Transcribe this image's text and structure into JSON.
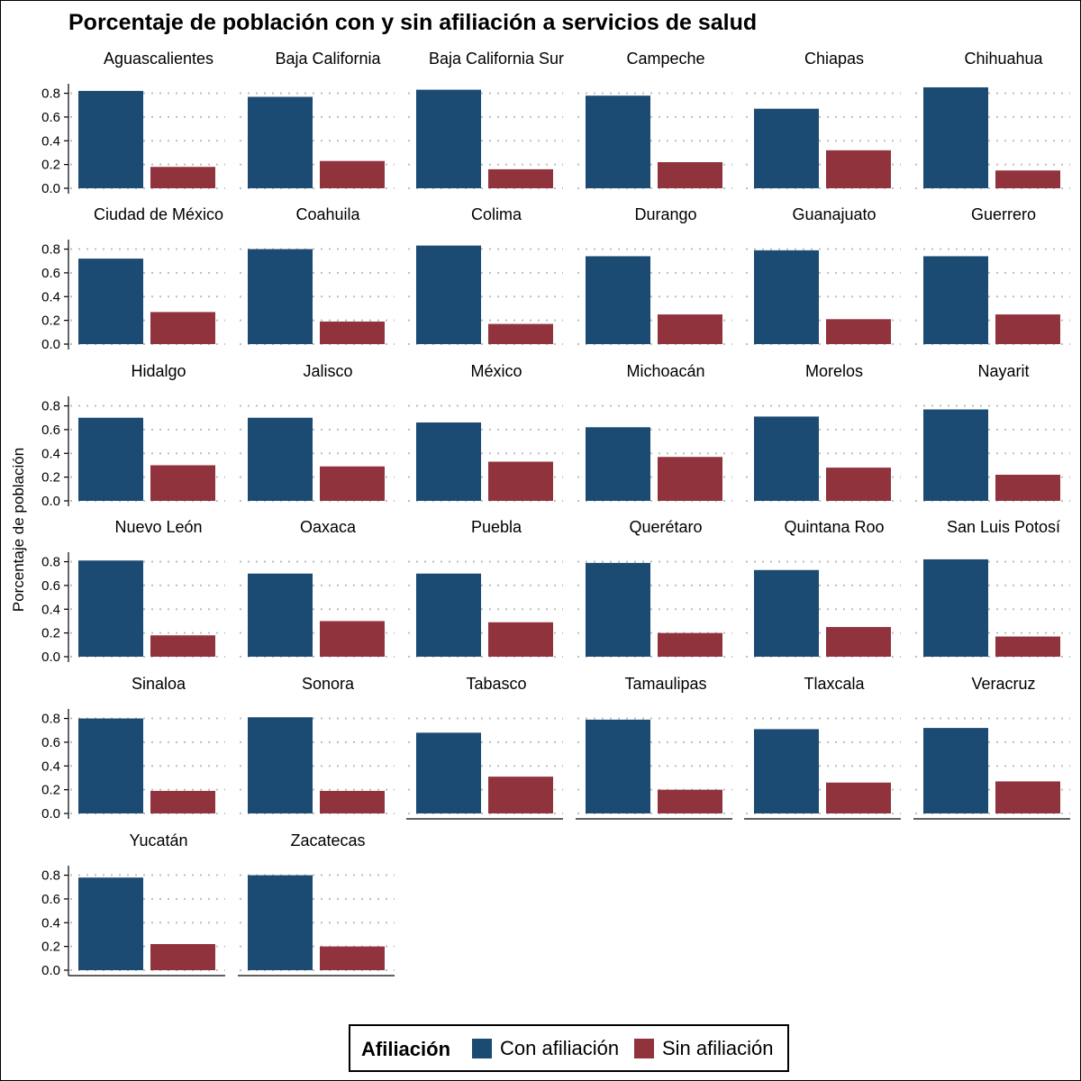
{
  "chart_data": {
    "type": "bar",
    "title": "Porcentaje de población con y sin afiliación a servicios de salud",
    "xlabel": "",
    "ylabel": "Porcentaje de población",
    "ylim": [
      0,
      0.88
    ],
    "yticks": [
      "0.0",
      "0.2",
      "0.4",
      "0.6",
      "0.8"
    ],
    "grid": "horizontal dotted",
    "legend": {
      "title": "Afiliación",
      "position": "bottom",
      "entries": [
        {
          "label": "Con afiliación",
          "color": "#1b4a72"
        },
        {
          "label": "Sin afiliación",
          "color": "#91333d"
        }
      ]
    },
    "facets": [
      {
        "name": "Aguascalientes",
        "values": [
          0.82,
          0.18
        ]
      },
      {
        "name": "Baja California",
        "values": [
          0.77,
          0.23
        ]
      },
      {
        "name": "Baja California Sur",
        "values": [
          0.83,
          0.16
        ]
      },
      {
        "name": "Campeche",
        "values": [
          0.78,
          0.22
        ]
      },
      {
        "name": "Chiapas",
        "values": [
          0.67,
          0.32
        ]
      },
      {
        "name": "Chihuahua",
        "values": [
          0.85,
          0.15
        ]
      },
      {
        "name": "Ciudad de México",
        "values": [
          0.72,
          0.27
        ]
      },
      {
        "name": "Coahuila",
        "values": [
          0.8,
          0.19
        ]
      },
      {
        "name": "Colima",
        "values": [
          0.83,
          0.17
        ]
      },
      {
        "name": "Durango",
        "values": [
          0.74,
          0.25
        ]
      },
      {
        "name": "Guanajuato",
        "values": [
          0.79,
          0.21
        ]
      },
      {
        "name": "Guerrero",
        "values": [
          0.74,
          0.25
        ]
      },
      {
        "name": "Hidalgo",
        "values": [
          0.7,
          0.3
        ]
      },
      {
        "name": "Jalisco",
        "values": [
          0.7,
          0.29
        ]
      },
      {
        "name": "México",
        "values": [
          0.66,
          0.33
        ]
      },
      {
        "name": "Michoacán",
        "values": [
          0.62,
          0.37
        ]
      },
      {
        "name": "Morelos",
        "values": [
          0.71,
          0.28
        ]
      },
      {
        "name": "Nayarit",
        "values": [
          0.77,
          0.22
        ]
      },
      {
        "name": "Nuevo León",
        "values": [
          0.81,
          0.18
        ]
      },
      {
        "name": "Oaxaca",
        "values": [
          0.7,
          0.3
        ]
      },
      {
        "name": "Puebla",
        "values": [
          0.7,
          0.29
        ]
      },
      {
        "name": "Querétaro",
        "values": [
          0.79,
          0.2
        ]
      },
      {
        "name": "Quintana Roo",
        "values": [
          0.73,
          0.25
        ]
      },
      {
        "name": "San Luis Potosí",
        "values": [
          0.82,
          0.17
        ]
      },
      {
        "name": "Sinaloa",
        "values": [
          0.8,
          0.19
        ]
      },
      {
        "name": "Sonora",
        "values": [
          0.81,
          0.19
        ]
      },
      {
        "name": "Tabasco",
        "values": [
          0.68,
          0.31
        ]
      },
      {
        "name": "Tamaulipas",
        "values": [
          0.79,
          0.2
        ]
      },
      {
        "name": "Tlaxcala",
        "values": [
          0.71,
          0.26
        ]
      },
      {
        "name": "Veracruz",
        "values": [
          0.72,
          0.27
        ]
      },
      {
        "name": "Yucatán",
        "values": [
          0.78,
          0.22
        ]
      },
      {
        "name": "Zacatecas",
        "values": [
          0.8,
          0.2
        ]
      }
    ]
  }
}
